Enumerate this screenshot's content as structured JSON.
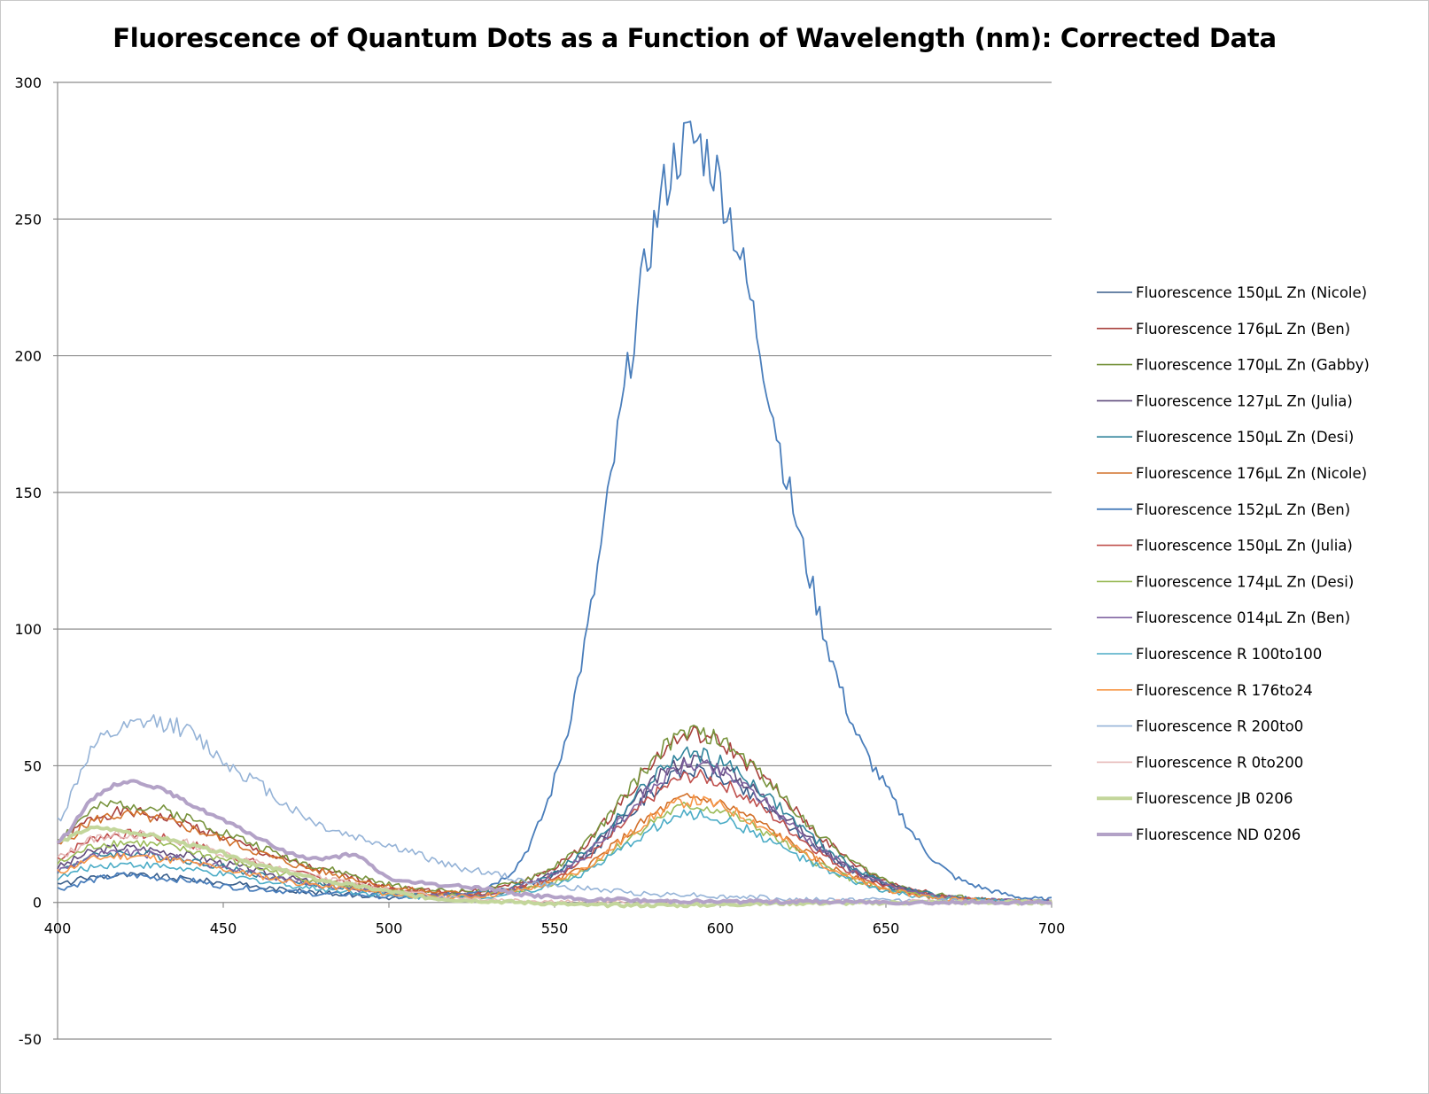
{
  "chart_data": {
    "type": "line",
    "title": "Fluorescence of Quantum Dots as a Function of Wavelength (nm): Corrected Data",
    "xlabel": "",
    "ylabel": "",
    "xlim": [
      400,
      700
    ],
    "ylim": [
      -50,
      300
    ],
    "x_ticks": [
      400,
      450,
      500,
      550,
      600,
      650,
      700
    ],
    "y_ticks": [
      -50,
      0,
      50,
      100,
      150,
      200,
      250,
      300
    ],
    "grid": true,
    "legend_position": "right",
    "x": [
      400,
      410,
      420,
      430,
      440,
      450,
      460,
      470,
      480,
      490,
      500,
      510,
      520,
      530,
      540,
      550,
      560,
      570,
      580,
      590,
      600,
      610,
      620,
      630,
      640,
      650,
      660,
      670,
      680,
      690,
      700
    ],
    "series": [
      {
        "name": "Fluorescence 150µL Zn (Nicole)",
        "color": "#385D8A",
        "width": 1.6,
        "values": [
          6.5,
          9.2,
          10,
          9.5,
          8.5,
          7.2,
          5.8,
          4.5,
          3.5,
          2.7,
          1.8,
          1.7,
          1.8,
          2.9,
          5.6,
          9.8,
          17.3,
          28.8,
          40.8,
          48,
          45.6,
          38.4,
          28.8,
          19.2,
          11.5,
          6.2,
          3.4,
          1.7,
          0.7,
          0.3,
          0.1
        ]
      },
      {
        "name": "Fluorescence 176µL Zn (Ben)",
        "color": "#A8403C",
        "width": 1.6,
        "values": [
          21.5,
          30.4,
          33,
          31.4,
          28.1,
          23.8,
          19.1,
          14.9,
          11.6,
          8.9,
          5.9,
          4.6,
          3.8,
          4.8,
          7.7,
          12.9,
          22,
          36.6,
          51.9,
          61,
          58,
          48.8,
          36.6,
          24.4,
          14.6,
          7.9,
          4.3,
          2.1,
          0.9,
          0.4,
          0.2
        ]
      },
      {
        "name": "Fluorescence 170µL Zn (Gabby)",
        "color": "#77933C",
        "width": 1.6,
        "values": [
          23.4,
          33.1,
          36,
          34.2,
          30.6,
          25.9,
          20.9,
          16.2,
          12.6,
          9.7,
          6.5,
          4.9,
          4.1,
          4.9,
          7.9,
          13.1,
          22.3,
          37.2,
          52.7,
          62,
          58.9,
          49.6,
          37.2,
          24.8,
          14.9,
          8.1,
          4.3,
          2.2,
          0.9,
          0.4,
          0.2
        ]
      },
      {
        "name": "Fluorescence 127µL Zn (Julia)",
        "color": "#5F4A7B",
        "width": 1.6,
        "values": [
          13,
          18.4,
          20,
          19,
          17,
          14.4,
          11.6,
          9,
          7,
          5.4,
          3.6,
          2.9,
          2.6,
          3.6,
          6.3,
          10.8,
          18.7,
          31.2,
          44.2,
          52,
          49.4,
          41.6,
          31.2,
          20.8,
          12.5,
          6.8,
          3.6,
          1.8,
          0.8,
          0.4,
          0.2
        ]
      },
      {
        "name": "Fluorescence 150µL Zn (Desi)",
        "color": "#31859C",
        "width": 1.6,
        "values": [
          11.7,
          16.6,
          18,
          17.1,
          15.3,
          13,
          10.4,
          8.1,
          6.3,
          4.9,
          3.2,
          2.7,
          2.5,
          3.6,
          6.4,
          11.2,
          19.4,
          32.4,
          45.9,
          54,
          51.3,
          43.2,
          32.4,
          21.6,
          13,
          7,
          3.8,
          1.9,
          0.8,
          0.4,
          0.2
        ]
      },
      {
        "name": "Fluorescence 176µL Zn (Nicole)",
        "color": "#D2702A",
        "width": 1.6,
        "values": [
          20.8,
          29.4,
          32,
          30.4,
          27.2,
          23,
          18.6,
          14.4,
          11.2,
          8.6,
          5.8,
          4.2,
          3.4,
          3.5,
          5.2,
          8.2,
          13.7,
          22.8,
          32.3,
          38,
          36.1,
          30.4,
          22.8,
          15.2,
          9.1,
          4.9,
          2.7,
          1.3,
          0.6,
          0.3,
          0.1
        ]
      },
      {
        "name": "Fluorescence 152µL Zn (Ben)",
        "color": "#4A7EBB",
        "width": 1.8,
        "values": [
          5,
          8,
          10,
          9,
          8,
          6,
          5,
          4,
          3,
          3,
          2,
          2,
          3,
          6,
          16,
          45,
          100,
          178,
          247,
          278,
          263,
          215,
          155,
          105,
          65,
          42,
          22,
          10,
          5,
          2,
          1
        ]
      },
      {
        "name": "Fluorescence 150µL Zn (Julia)",
        "color": "#C0504D",
        "width": 1.6,
        "values": [
          16.3,
          23,
          25,
          23.8,
          21.3,
          18,
          14.5,
          11.3,
          8.8,
          6.8,
          4.5,
          3.5,
          2.9,
          3.6,
          5.9,
          9.7,
          16.6,
          27.6,
          39.1,
          46,
          43.7,
          36.8,
          27.6,
          18.4,
          11,
          6,
          3.2,
          1.6,
          0.7,
          0.3,
          0.1
        ]
      },
      {
        "name": "Fluorescence 174µL Zn (Desi)",
        "color": "#9BBB59",
        "width": 1.6,
        "values": [
          14.3,
          20.2,
          22,
          20.9,
          18.7,
          15.8,
          12.8,
          9.9,
          7.7,
          5.9,
          4,
          3,
          2.5,
          2.9,
          4.6,
          7.4,
          12.6,
          21,
          29.8,
          35,
          33.3,
          28,
          21,
          14,
          8.4,
          4.6,
          2.5,
          1.2,
          0.5,
          0.2,
          0.1
        ]
      },
      {
        "name": "Fluorescence 014µL Zn (Ben)",
        "color": "#8064A2",
        "width": 1.6,
        "values": [
          11.7,
          16.6,
          18,
          17.1,
          15.3,
          13,
          10.4,
          8.1,
          6.3,
          4.9,
          3.2,
          2.7,
          2.4,
          3.4,
          6,
          10.4,
          18,
          30,
          42.5,
          50,
          47.5,
          40,
          30,
          20,
          12,
          6.5,
          3.5,
          1.8,
          0.8,
          0.4,
          0.2
        ]
      },
      {
        "name": "Fluorescence R 100to100",
        "color": "#4BACC6",
        "width": 1.6,
        "values": [
          9.1,
          12.9,
          14,
          13.3,
          11.9,
          10.1,
          8.1,
          6.3,
          4.9,
          3.8,
          2.5,
          2,
          1.8,
          2.3,
          3.9,
          6.7,
          11.5,
          19.2,
          27.2,
          32,
          30.4,
          25.6,
          19.2,
          12.8,
          7.7,
          4.2,
          2.2,
          1.1,
          0.5,
          0.2,
          0.1
        ]
      },
      {
        "name": "Fluorescence R 176to24",
        "color": "#F79646",
        "width": 1.6,
        "values": [
          11.1,
          15.6,
          17,
          16.2,
          14.5,
          12.2,
          9.9,
          7.7,
          6,
          4.6,
          3.1,
          2.4,
          2.1,
          2.7,
          4.6,
          7.7,
          13.3,
          22.2,
          31.5,
          37,
          35.2,
          29.6,
          22.2,
          14.8,
          8.9,
          4.8,
          2.6,
          1.3,
          0.6,
          0.3,
          0.1
        ]
      },
      {
        "name": "Fluorescence R 200to0",
        "color": "#95B3D7",
        "width": 1.6,
        "values": [
          30,
          55,
          63,
          66,
          62,
          52,
          44,
          35,
          28,
          24,
          21,
          17,
          13,
          11,
          8,
          6,
          5,
          4,
          3,
          3,
          2,
          2,
          1,
          1,
          1,
          1,
          0.5,
          0.5,
          0.3,
          0.2,
          0.2
        ]
      },
      {
        "name": "Fluorescence R 0to200",
        "color": "#E6B9B8",
        "width": 1.6,
        "values": [
          16.3,
          23,
          25,
          23.8,
          21.3,
          18,
          14.5,
          11.3,
          8.8,
          6.8,
          4.5,
          3,
          2,
          1.3,
          0.8,
          0.5,
          0.3,
          0.3,
          0.2,
          0.2,
          0.2,
          0.2,
          0.2,
          0.2,
          0.2,
          0.2,
          0.2,
          0.2,
          0.2,
          0.2,
          0.2
        ]
      },
      {
        "name": "Fluorescence JB 0206",
        "color": "#C3D69B",
        "width": 4,
        "values": [
          22,
          27,
          26,
          24,
          21,
          18,
          14,
          11,
          8,
          6,
          4,
          2,
          1,
          0.5,
          0,
          -0.5,
          -1,
          -1,
          -1,
          -1,
          -0.8,
          -0.5,
          -0.3,
          -0.2,
          -0.2,
          -0.1,
          0,
          0,
          0,
          0,
          0
        ]
      },
      {
        "name": "Fluorescence ND 0206",
        "color": "#B3A2C7",
        "width": 4,
        "values": [
          22,
          37,
          44,
          42,
          36,
          30,
          24,
          18,
          16,
          17,
          9,
          7,
          6,
          5,
          3,
          2,
          1,
          1,
          0.5,
          0.5,
          0.3,
          0.3,
          0.3,
          0.2,
          0.2,
          0.1,
          0,
          0,
          0,
          0,
          0
        ]
      }
    ]
  }
}
